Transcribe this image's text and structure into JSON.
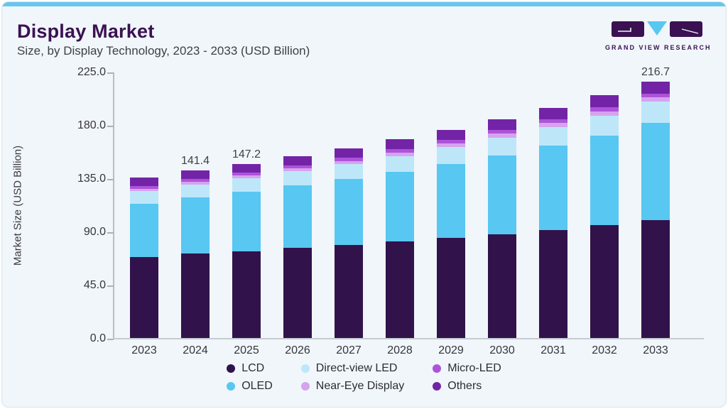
{
  "page": {
    "title": "Display Market",
    "subtitle": "Size, by Display Technology, 2023 - 2033 (USD Billion)",
    "brand": {
      "name": "GRAND VIEW RESEARCH",
      "purple": "#3B1152",
      "accent": "#58C7F2"
    }
  },
  "chart_data": {
    "type": "bar",
    "stacked": true,
    "title": "Display Market Size, by Display Technology, 2023 - 2033 (USD Billion)",
    "categories": [
      "2023",
      "2024",
      "2025",
      "2026",
      "2027",
      "2028",
      "2029",
      "2030",
      "2031",
      "2032",
      "2033"
    ],
    "series": [
      {
        "name": "LCD",
        "color": "#32124A",
        "values": [
          68.6,
          71.2,
          73.5,
          76.0,
          78.6,
          81.4,
          84.5,
          87.8,
          91.4,
          95.3,
          99.6
        ]
      },
      {
        "name": "OLED",
        "color": "#58C7F2",
        "values": [
          44.9,
          47.5,
          50.0,
          52.8,
          55.8,
          59.1,
          62.7,
          66.7,
          71.1,
          75.9,
          82.0
        ]
      },
      {
        "name": "Direct-view LED",
        "color": "#BDE7F9",
        "values": [
          10.5,
          10.9,
          11.4,
          12.0,
          12.6,
          13.3,
          14.1,
          14.9,
          15.8,
          16.9,
          18.0
        ]
      },
      {
        "name": "Near-Eye Display",
        "color": "#D6A3ED",
        "values": [
          2.2,
          2.3,
          2.4,
          2.5,
          2.7,
          2.8,
          3.0,
          3.2,
          3.4,
          3.6,
          3.8
        ]
      },
      {
        "name": "Micro-LED",
        "color": "#AD53DA",
        "values": [
          2.3,
          2.4,
          2.5,
          2.6,
          2.7,
          2.9,
          3.0,
          3.1,
          3.2,
          3.4,
          3.3
        ]
      },
      {
        "name": "Others",
        "color": "#7324A6",
        "values": [
          7.0,
          7.1,
          7.4,
          7.7,
          8.1,
          8.5,
          8.8,
          9.2,
          9.6,
          10.1,
          10.0
        ]
      }
    ],
    "bar_labels": {
      "2024": "141.4",
      "2025": "147.2",
      "2033": "216.7"
    },
    "ylabel": "Market Size (USD Billion)",
    "ylim": [
      0,
      225
    ],
    "yticks": [
      "0.0",
      "45.0",
      "90.0",
      "135.0",
      "180.0",
      "225.0"
    ],
    "grid": false,
    "legend_position": "bottom"
  }
}
